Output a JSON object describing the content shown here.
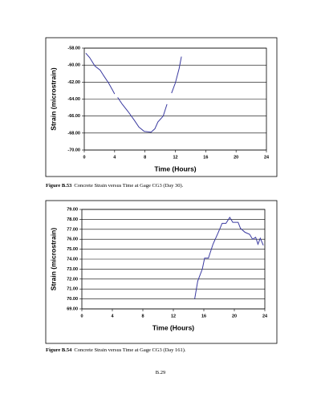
{
  "chart_data": [
    {
      "type": "line",
      "x_label": "Time (Hours)",
      "y_label": "Strain (microstrain)",
      "x": [
        0.2,
        0.7,
        1.4,
        2.1,
        2.6,
        3.2,
        3.7,
        4.0,
        null,
        4.4,
        5.0,
        5.8,
        6.6,
        7.2,
        7.9,
        8.8,
        9.3,
        9.7,
        10.4,
        10.9,
        null,
        11.5,
        12.0,
        12.5,
        12.8
      ],
      "series": [
        {
          "color": "#3a3aa0",
          "values": [
            -58.6,
            -59.1,
            -60.1,
            -60.6,
            -61.3,
            -62.1,
            -62.9,
            -63.4,
            null,
            -63.8,
            -64.6,
            -65.5,
            -66.5,
            -67.3,
            -67.8,
            -67.9,
            -67.5,
            -66.7,
            -66.0,
            -64.6,
            null,
            -63.3,
            -62.1,
            -60.4,
            -59.0
          ]
        }
      ],
      "xlim": [
        0,
        24
      ],
      "xticks": [
        0,
        4,
        8,
        12,
        16,
        20,
        24
      ],
      "ylim": [
        -70,
        -58
      ],
      "yticks": [
        {
          "value": -70,
          "label": "-70.00"
        },
        {
          "value": -68,
          "label": "-68.00"
        },
        {
          "value": -66,
          "label": "-66.00"
        },
        {
          "value": -64,
          "label": "-64.00"
        },
        {
          "value": -62,
          "label": "-62.00"
        },
        {
          "value": -60,
          "label": "-60.00"
        },
        {
          "value": -58,
          "label": "-58.00"
        }
      ],
      "grid": true
    },
    {
      "type": "line",
      "x_label": "Time (Hours)",
      "y_label": "Strain (microstrain)",
      "x": [
        14.8,
        15.2,
        15.8,
        16.1,
        16.6,
        17.2,
        17.9,
        18.4,
        18.9,
        19.4,
        19.8,
        20.5,
        20.8,
        21.4,
        22.0,
        22.4,
        22.8,
        23.1,
        23.4,
        23.8
      ],
      "series": [
        {
          "color": "#3a3aa0",
          "values": [
            70.0,
            71.8,
            73.0,
            74.1,
            74.1,
            75.5,
            76.7,
            77.6,
            77.6,
            78.2,
            77.7,
            77.7,
            77.1,
            76.7,
            76.5,
            76.0,
            76.2,
            75.5,
            76.1,
            75.4
          ]
        }
      ],
      "xlim": [
        0,
        24
      ],
      "xticks": [
        0,
        4,
        8,
        12,
        16,
        20,
        24
      ],
      "ylim": [
        69,
        79
      ],
      "yticks": [
        {
          "value": 69,
          "label": "69.00"
        },
        {
          "value": 70,
          "label": "70.00"
        },
        {
          "value": 71,
          "label": "71.00"
        },
        {
          "value": 72,
          "label": "72.00"
        },
        {
          "value": 73,
          "label": "73.00"
        },
        {
          "value": 74,
          "label": "74.00"
        },
        {
          "value": 75,
          "label": "75.00"
        },
        {
          "value": 76,
          "label": "76.00"
        },
        {
          "value": 77,
          "label": "77.00"
        },
        {
          "value": 78,
          "label": "78.00"
        },
        {
          "value": 79,
          "label": "79.00"
        }
      ],
      "grid": true
    }
  ],
  "captions": [
    {
      "label": "Figure B.53",
      "text": "Concrete Strain versus Time at Gage CG3 (Day 30)."
    },
    {
      "label": "Figure B.54",
      "text": "Concrete Strain versus Time at Gage CG3 (Day 161)."
    }
  ],
  "page_number": "B.29"
}
